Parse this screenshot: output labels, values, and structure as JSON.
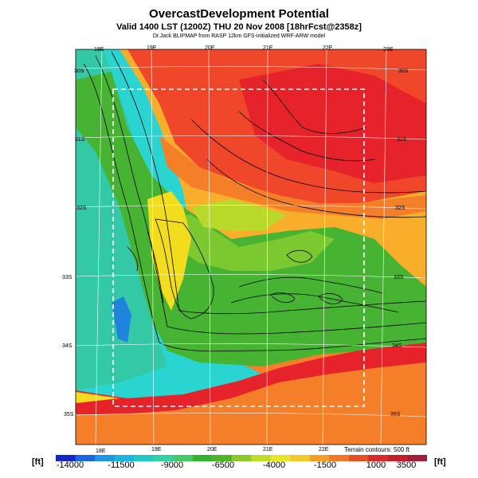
{
  "title": "OvercastDevelopment Potential",
  "subtitle": "Valid 1400 LST (1200Z) THU 20 Nov 2008 [18hrFcst@2358z]",
  "credit": "Dr.Jack BLIPMAP from RASP 12km GFS-initialized WRF-ARW model",
  "terrain_note": "Terrain contours: 500 ft",
  "unit_left": "[ft]",
  "unit_right": "[ft]",
  "lon_labels_top": [
    "18E",
    "19E",
    "20E",
    "21E",
    "22E",
    "23E"
  ],
  "lon_labels_bottom": [
    "18E",
    "19E",
    "20E",
    "21E",
    "22E"
  ],
  "lat_labels_left": [
    "30S",
    "31S",
    "32S",
    "33S",
    "34S",
    "35S"
  ],
  "lat_labels_right": [
    "30S",
    "31S",
    "32S",
    "33S",
    "34S",
    "35S"
  ],
  "colorbar": {
    "labels": [
      "-14000",
      "-11500",
      "-9000",
      "-6500",
      "-4000",
      "-1500",
      "1000",
      "3500"
    ],
    "colors": [
      "#1428c8",
      "#1e64dc",
      "#1e96e6",
      "#1eb4dc",
      "#1ec8c8",
      "#32d2a0",
      "#46c864",
      "#32b432",
      "#50b428",
      "#8cc828",
      "#bedc28",
      "#e6e628",
      "#f0c828",
      "#f0a028",
      "#f07828",
      "#e65028",
      "#dc2828",
      "#c81e28",
      "#a01e3c"
    ]
  },
  "map_colors": {
    "deep_red": "#e6232a",
    "red": "#f0462a",
    "orange": "#f57f29",
    "light_orange": "#f8ae2a",
    "yellow": "#f2dc1e",
    "yellow_green": "#b8d82a",
    "light_green": "#7cc831",
    "green": "#46b432",
    "teal": "#33c8a6",
    "cyan": "#2ad4d0",
    "blue": "#1e84dc"
  }
}
